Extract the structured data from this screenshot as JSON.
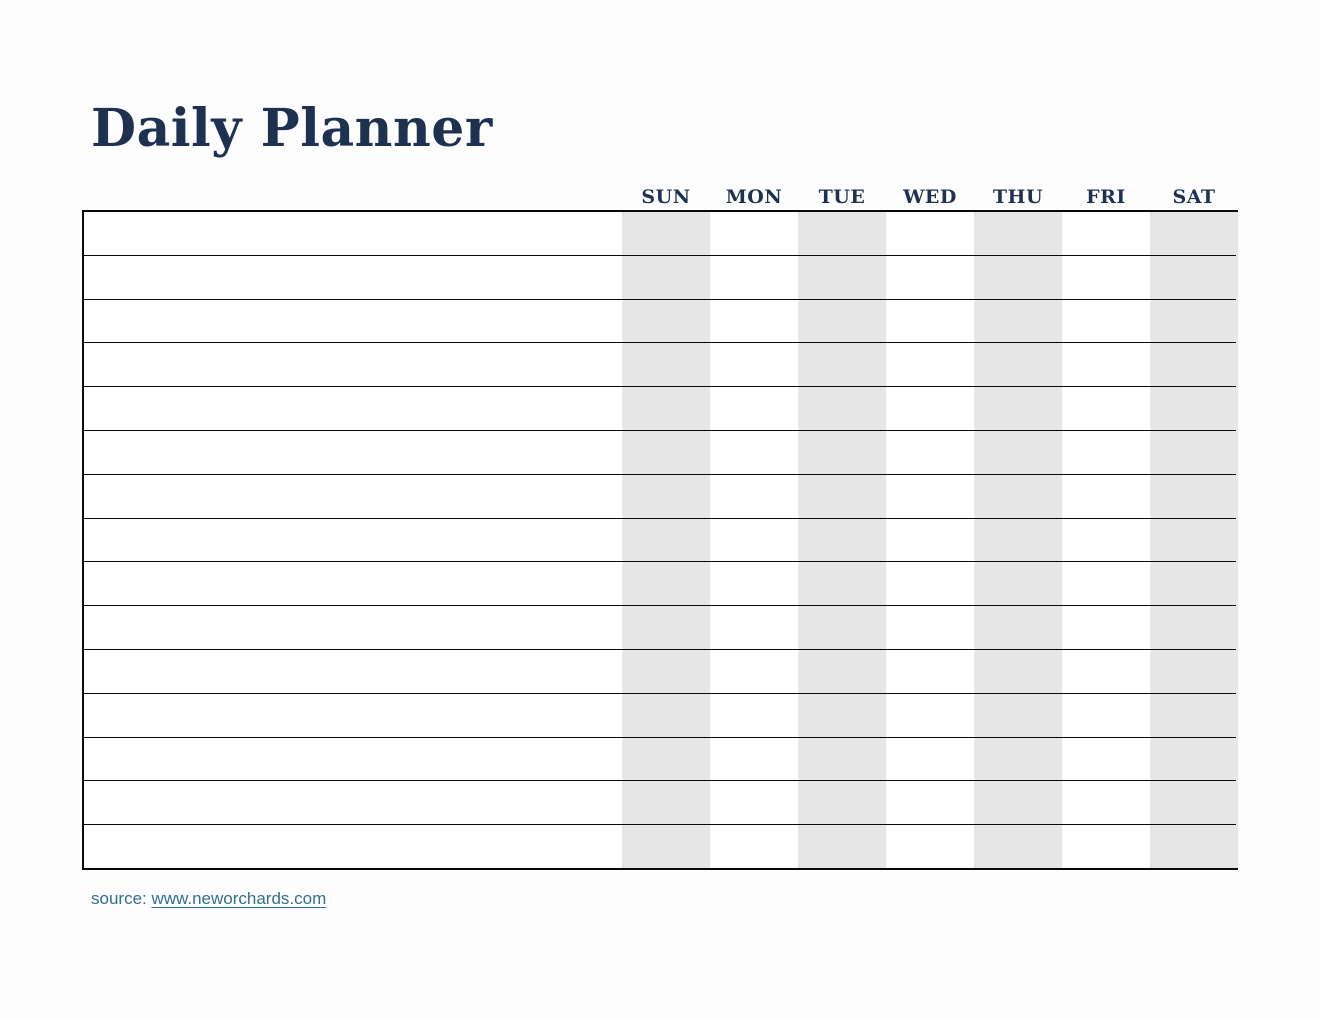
{
  "page": {
    "title": "Daily Planner",
    "background": "#fdfdfd"
  },
  "planner": {
    "day_headers": [
      "SUN",
      "MON",
      "TUE",
      "WED",
      "THU",
      "FRI",
      "SAT"
    ],
    "shaded_day_indices": [
      0,
      2,
      4,
      6
    ],
    "row_count": 15,
    "colors": {
      "header_text": "#1f3150",
      "shaded_column": "#e6e6e6",
      "grid_line": "#0b0b0b"
    }
  },
  "footer": {
    "source_label": "source:",
    "source_link_text": "www.neworchards.com",
    "link_color": "#31708f"
  }
}
